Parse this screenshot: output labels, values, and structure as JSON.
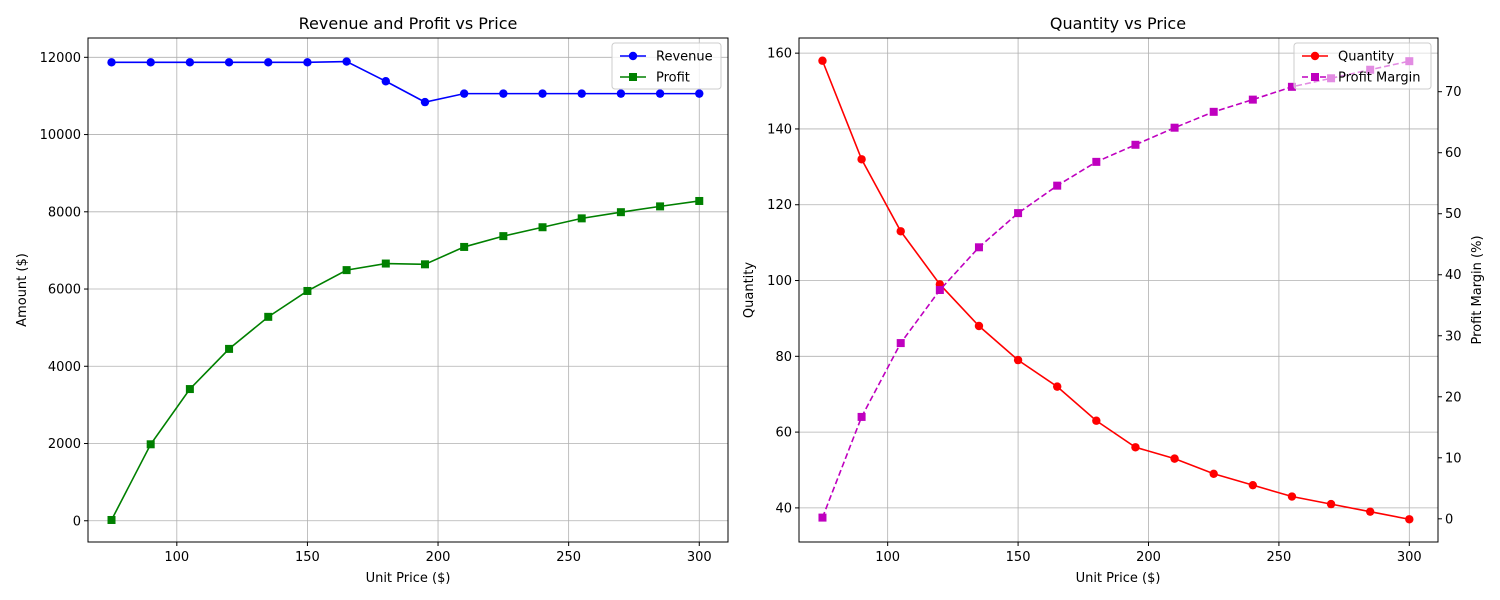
{
  "chart_data": [
    {
      "type": "line",
      "title": "Revenue and Profit vs Price",
      "xlabel": "Unit Price ($)",
      "ylabel": "Amount ($)",
      "xlim": [
        66,
        311
      ],
      "ylim": [
        -550,
        12500
      ],
      "xticks": [
        100,
        150,
        200,
        250,
        300
      ],
      "yticks": [
        0,
        2000,
        4000,
        6000,
        8000,
        10000,
        12000
      ],
      "grid": true,
      "legend_position": "upper right",
      "x": [
        75,
        90,
        105,
        120,
        135,
        150,
        165,
        180,
        195,
        210,
        225,
        240,
        255,
        270,
        285,
        300
      ],
      "series": [
        {
          "name": "Revenue",
          "color": "#0000ff",
          "marker": "circle",
          "linestyle": "solid",
          "axis": "left",
          "values": [
            11870,
            11870,
            11870,
            11870,
            11870,
            11870,
            11890,
            11380,
            10840,
            11060,
            11060,
            11060,
            11060,
            11060,
            11060,
            11060
          ]
        },
        {
          "name": "Profit",
          "color": "#008000",
          "marker": "square",
          "linestyle": "solid",
          "axis": "left",
          "values": [
            20,
            1980,
            3410,
            4450,
            5280,
            5950,
            6490,
            6660,
            6640,
            7090,
            7370,
            7600,
            7830,
            7990,
            8140,
            8280
          ]
        }
      ]
    },
    {
      "type": "line",
      "title": "Quantity vs Price",
      "xlabel": "Unit Price ($)",
      "ylabel": "Quantity",
      "ylabel_right": "Profit Margin (%)",
      "xlim": [
        66,
        311
      ],
      "ylim": [
        31,
        164
      ],
      "ylim_right": [
        -3.8,
        78.8
      ],
      "xticks": [
        100,
        150,
        200,
        250,
        300
      ],
      "yticks": [
        40,
        60,
        80,
        100,
        120,
        140,
        160
      ],
      "yticks_right": [
        0,
        10,
        20,
        30,
        40,
        50,
        60,
        70
      ],
      "grid": true,
      "legend_position": "upper right",
      "x": [
        75,
        90,
        105,
        120,
        135,
        150,
        165,
        180,
        195,
        210,
        225,
        240,
        255,
        270,
        285,
        300
      ],
      "series": [
        {
          "name": "Quantity",
          "color": "#ff0000",
          "marker": "circle",
          "linestyle": "solid",
          "axis": "left",
          "values": [
            158,
            132,
            113,
            99,
            88,
            79,
            72,
            63,
            56,
            53,
            49,
            46,
            43,
            41,
            39,
            37
          ]
        },
        {
          "name": "Profit Margin",
          "color": "#bf00bf",
          "marker": "square",
          "linestyle": "dashed",
          "axis": "right",
          "values": [
            0.2,
            16.7,
            28.8,
            37.5,
            44.5,
            50.1,
            54.6,
            58.5,
            61.3,
            64.1,
            66.7,
            68.7,
            70.8,
            72.2,
            73.6,
            75.0
          ]
        }
      ]
    }
  ]
}
